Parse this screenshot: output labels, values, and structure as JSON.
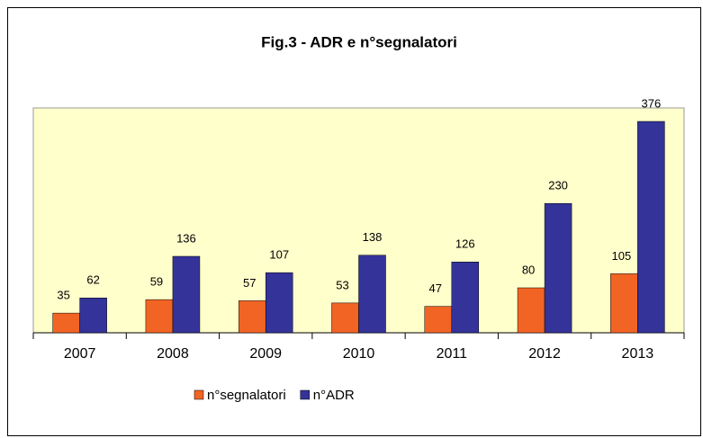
{
  "chart_data": {
    "type": "bar",
    "title": "Fig.3 - ADR e n°segnalatori",
    "categories": [
      "2007",
      "2008",
      "2009",
      "2010",
      "2011",
      "2012",
      "2013"
    ],
    "series": [
      {
        "name": "n°segnalatori",
        "color": "#f26424",
        "values": [
          35,
          59,
          57,
          53,
          47,
          80,
          105
        ]
      },
      {
        "name": "n°ADR",
        "color": "#333399",
        "values": [
          62,
          136,
          107,
          138,
          126,
          230,
          376
        ]
      }
    ],
    "ylim": [
      0,
      400
    ],
    "plot_background": "#ffffcc",
    "legend": "bottom"
  }
}
